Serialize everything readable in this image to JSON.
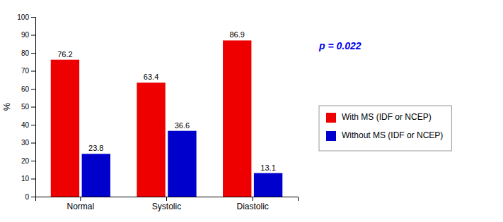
{
  "chart_data": {
    "type": "bar",
    "categories": [
      "Normal",
      "Systolic",
      "Diastolic"
    ],
    "series": [
      {
        "name": "With MS (IDF or NCEP)",
        "color": "#EE0000",
        "values": [
          76.2,
          63.4,
          86.9
        ]
      },
      {
        "name": "Without MS (IDF or NCEP)",
        "color": "#0000CC",
        "values": [
          23.8,
          36.6,
          13.1
        ]
      }
    ],
    "ylabel": "%",
    "ylim": [
      0,
      100
    ],
    "yticks": [
      0,
      10,
      20,
      30,
      40,
      50,
      60,
      70,
      80,
      90,
      100
    ],
    "grid": false,
    "legend": "right",
    "data_labels": true,
    "annotations": [
      {
        "text": "p = 0.022",
        "color": "#0000EE"
      }
    ]
  }
}
